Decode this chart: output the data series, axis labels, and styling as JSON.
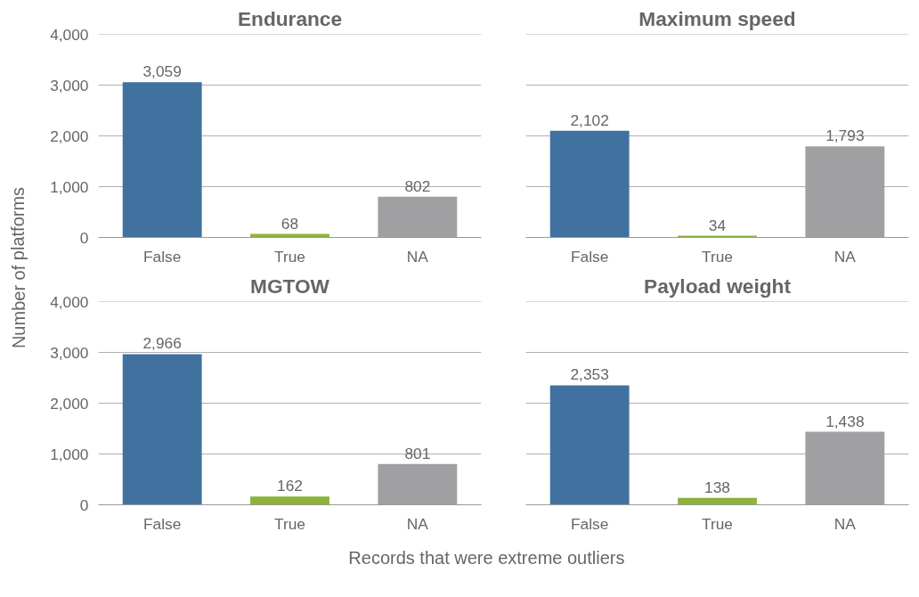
{
  "chart_data": [
    {
      "type": "bar",
      "title": "Endurance",
      "ylabel": "Number of platforms",
      "categories": [
        "False",
        "True",
        "NA"
      ],
      "values": [
        3059,
        68,
        802
      ],
      "colors": [
        "#41729f",
        "#8db33a",
        "#a0a0a2"
      ],
      "ylim": [
        0,
        4000
      ],
      "yticks": [
        0,
        {
          "value": 1000,
          "label": "1,000"
        },
        {
          "value": 2000,
          "label": "2,000"
        },
        {
          "value": 3000,
          "label": "3,000"
        },
        {
          "value": 4000,
          "label": "4,000"
        }
      ],
      "grid": "y",
      "value_labels": [
        "3,059",
        "68",
        "802"
      ]
    },
    {
      "type": "bar",
      "title": "Maximum speed",
      "categories": [
        "False",
        "True",
        "NA"
      ],
      "values": [
        2102,
        34,
        1793
      ],
      "colors": [
        "#41729f",
        "#8db33a",
        "#a0a0a2"
      ],
      "ylim": [
        0,
        4000
      ],
      "yticks": [
        {
          "value": 0,
          "label": null
        },
        {
          "value": 1000,
          "label": null
        },
        {
          "value": 2000,
          "label": null
        },
        {
          "value": 3000,
          "label": null
        },
        {
          "value": 4000,
          "label": null
        }
      ],
      "grid": "y",
      "tick_labels": "x",
      "value_labels": [
        "2,102",
        "34",
        "1,793"
      ]
    },
    {
      "type": "bar",
      "title": "MGTOW",
      "xlabel": "Records that were extreme outliers",
      "categories": [
        "False",
        "True",
        "NA"
      ],
      "values": [
        2966,
        162,
        801
      ],
      "colors": [
        "#41729f",
        "#8db33a",
        "#a0a0a2"
      ],
      "ylim": [
        0,
        4000
      ],
      "yticks": [
        0,
        {
          "value": 1000,
          "label": "1,000"
        },
        {
          "value": 2000,
          "label": "2,000"
        },
        {
          "value": 3000,
          "label": "3,000"
        },
        {
          "value": 4000,
          "label": "4,000"
        }
      ],
      "grid": "y",
      "value_labels": [
        "2,966",
        "162",
        "801"
      ]
    },
    {
      "type": "bar",
      "title": "Payload weight",
      "categories": [
        "False",
        "True",
        "NA"
      ],
      "values": [
        2353,
        138,
        1438
      ],
      "colors": [
        "#41729f",
        "#8db33a",
        "#a0a0a2"
      ],
      "ylim": [
        0,
        4000
      ],
      "yticks": [
        {
          "value": 0,
          "label": null
        },
        {
          "value": 1000,
          "label": null
        },
        {
          "value": 2000,
          "label": null
        },
        {
          "value": 3000,
          "label": null
        },
        {
          "value": 4000,
          "label": null
        }
      ],
      "grid": "y",
      "tick_labels": "x",
      "value_labels": [
        "2,353",
        "138",
        "1,438"
      ]
    }
  ]
}
